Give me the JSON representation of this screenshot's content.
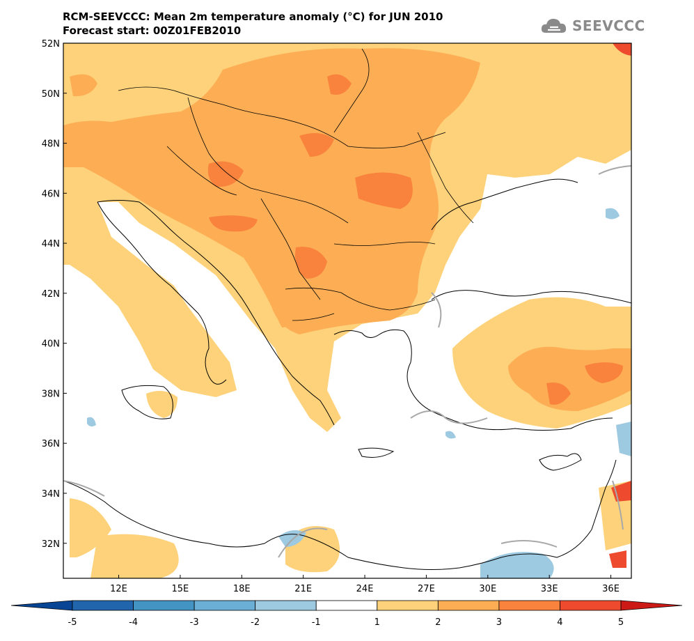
{
  "header": {
    "title_line1": "RCM-SEEVCCC: Mean 2m temperature anomaly (°C) for JUN 2010",
    "title_line2": "Forecast start: 00Z01FEB2010"
  },
  "logo": {
    "text": "SEEVCCC",
    "icon": "cloud-icon"
  },
  "map": {
    "lat_labels": [
      "52N",
      "50N",
      "48N",
      "46N",
      "44N",
      "42N",
      "40N",
      "38N",
      "36N",
      "34N",
      "32N"
    ],
    "lat_values": [
      52,
      50,
      48,
      46,
      44,
      42,
      40,
      38,
      36,
      34,
      32
    ],
    "lon_labels": [
      "12E",
      "15E",
      "18E",
      "21E",
      "24E",
      "27E",
      "30E",
      "33E",
      "36E"
    ],
    "lon_values": [
      12,
      15,
      18,
      21,
      24,
      27,
      30,
      33,
      36
    ],
    "lon_range": [
      9.3,
      37.0
    ],
    "lat_range": [
      30.6,
      52.0
    ]
  },
  "colorbar": {
    "tick_labels": [
      "-5",
      "-4",
      "-3",
      "-2",
      "-1",
      "1",
      "2",
      "3",
      "4",
      "5"
    ],
    "bins": [
      {
        "range": "-5 to -4",
        "color": "#2166ac"
      },
      {
        "range": "-4 to -3",
        "color": "#4393c3"
      },
      {
        "range": "-3 to -2",
        "color": "#6baed6"
      },
      {
        "range": "-2 to -1",
        "color": "#9ecae1"
      },
      {
        "range": "-1 to 1",
        "color": "#ffffff"
      },
      {
        "range": "1 to 2",
        "color": "#fdd27a"
      },
      {
        "range": "2 to 3",
        "color": "#fdae55"
      },
      {
        "range": "3 to 4",
        "color": "#f9833d"
      },
      {
        "range": "4 to 5",
        "color": "#ee4a2e"
      }
    ],
    "under_color": "#084594",
    "over_color": "#cc1a17"
  }
}
